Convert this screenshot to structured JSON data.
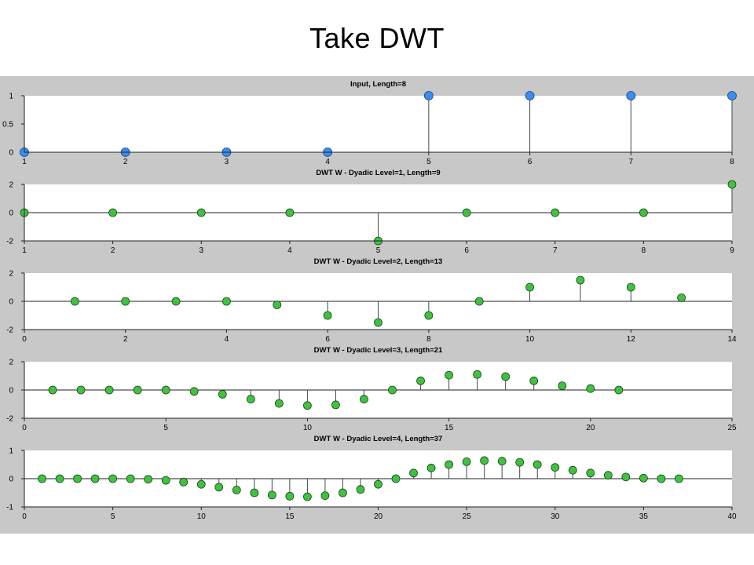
{
  "slide": {
    "title": "Take DWT"
  },
  "colors": {
    "figure_bg": "#c8c8c8",
    "axes_bg": "#ffffff",
    "stem": "#3a4a55",
    "blue_marker": "#3a8ef0",
    "green_marker": "#3fc23f",
    "marker_edge": "#1e3f1e"
  },
  "chart_data": [
    {
      "type": "stem",
      "title": "Input, Length=8",
      "marker_color": "blue",
      "x": [
        1,
        2,
        3,
        4,
        5,
        6,
        7,
        8
      ],
      "y": [
        0,
        0,
        0,
        0,
        1,
        1,
        1,
        1
      ],
      "xlim": [
        1,
        8
      ],
      "ylim": [
        0,
        1
      ],
      "xticks": [
        1,
        2,
        3,
        4,
        5,
        6,
        7,
        8
      ],
      "yticks": [
        0,
        0.5,
        1
      ],
      "ytick_labels": [
        "0",
        "0.5",
        "1"
      ]
    },
    {
      "type": "stem",
      "title": "DWT W - Dyadic Level=1, Length=9",
      "marker_color": "green",
      "x": [
        1,
        2,
        3,
        4,
        5,
        6,
        7,
        8,
        9
      ],
      "y": [
        0,
        0,
        0,
        0,
        -2,
        0,
        0,
        0,
        2
      ],
      "xlim": [
        1,
        9
      ],
      "ylim": [
        -2,
        2
      ],
      "xticks": [
        1,
        2,
        3,
        4,
        5,
        6,
        7,
        8,
        9
      ],
      "yticks": [
        -2,
        0,
        2
      ],
      "ytick_labels": [
        "-2",
        "0",
        "2"
      ]
    },
    {
      "type": "stem",
      "title": "DWT W - Dyadic Level=2, Length=13",
      "marker_color": "green",
      "x": [
        1,
        2,
        3,
        4,
        5,
        6,
        7,
        8,
        9,
        10,
        11,
        12,
        13
      ],
      "y": [
        0,
        0,
        0,
        0,
        -0.25,
        -1,
        -1.5,
        -1,
        0,
        1,
        1.5,
        1,
        0.25
      ],
      "xlim": [
        0,
        14
      ],
      "ylim": [
        -2,
        2
      ],
      "xticks": [
        0,
        2,
        4,
        6,
        8,
        10,
        12,
        14
      ],
      "yticks": [
        -2,
        0,
        2
      ],
      "ytick_labels": [
        "-2",
        "0",
        "2"
      ]
    },
    {
      "type": "stem",
      "title": "DWT W - Dyadic Level=3, Length=21",
      "marker_color": "green",
      "x": [
        1,
        2,
        3,
        4,
        5,
        6,
        7,
        8,
        9,
        10,
        11,
        12,
        13,
        14,
        15,
        16,
        17,
        18,
        19,
        20,
        21
      ],
      "y": [
        0,
        0,
        0,
        0,
        0,
        -0.1,
        -0.3,
        -0.65,
        -0.95,
        -1.1,
        -1.05,
        -0.65,
        0,
        0.65,
        1.05,
        1.1,
        0.95,
        0.65,
        0.3,
        0.1,
        0
      ],
      "xlim": [
        0,
        25
      ],
      "ylim": [
        -2,
        2
      ],
      "xticks": [
        0,
        5,
        10,
        15,
        20,
        25
      ],
      "yticks": [
        -2,
        0,
        2
      ],
      "ytick_labels": [
        "-2",
        "0",
        "2"
      ]
    },
    {
      "type": "stem",
      "title": "DWT W - Dyadic Level=4, Length=37",
      "marker_color": "green",
      "x": [
        1,
        2,
        3,
        4,
        5,
        6,
        7,
        8,
        9,
        10,
        11,
        12,
        13,
        14,
        15,
        16,
        17,
        18,
        19,
        20,
        21,
        22,
        23,
        24,
        25,
        26,
        27,
        28,
        29,
        30,
        31,
        32,
        33,
        34,
        35,
        36,
        37
      ],
      "y": [
        0,
        0,
        0,
        0,
        0,
        0,
        -0.02,
        -0.06,
        -0.12,
        -0.2,
        -0.3,
        -0.4,
        -0.5,
        -0.58,
        -0.62,
        -0.64,
        -0.6,
        -0.5,
        -0.38,
        -0.2,
        0,
        0.2,
        0.38,
        0.5,
        0.6,
        0.64,
        0.62,
        0.58,
        0.5,
        0.4,
        0.3,
        0.2,
        0.12,
        0.06,
        0.02,
        0,
        0
      ],
      "xlim": [
        0,
        40
      ],
      "ylim": [
        -1,
        1
      ],
      "xticks": [
        0,
        5,
        10,
        15,
        20,
        25,
        30,
        35,
        40
      ],
      "yticks": [
        -1,
        0,
        1
      ],
      "ytick_labels": [
        "-1",
        "0",
        "1"
      ]
    }
  ]
}
